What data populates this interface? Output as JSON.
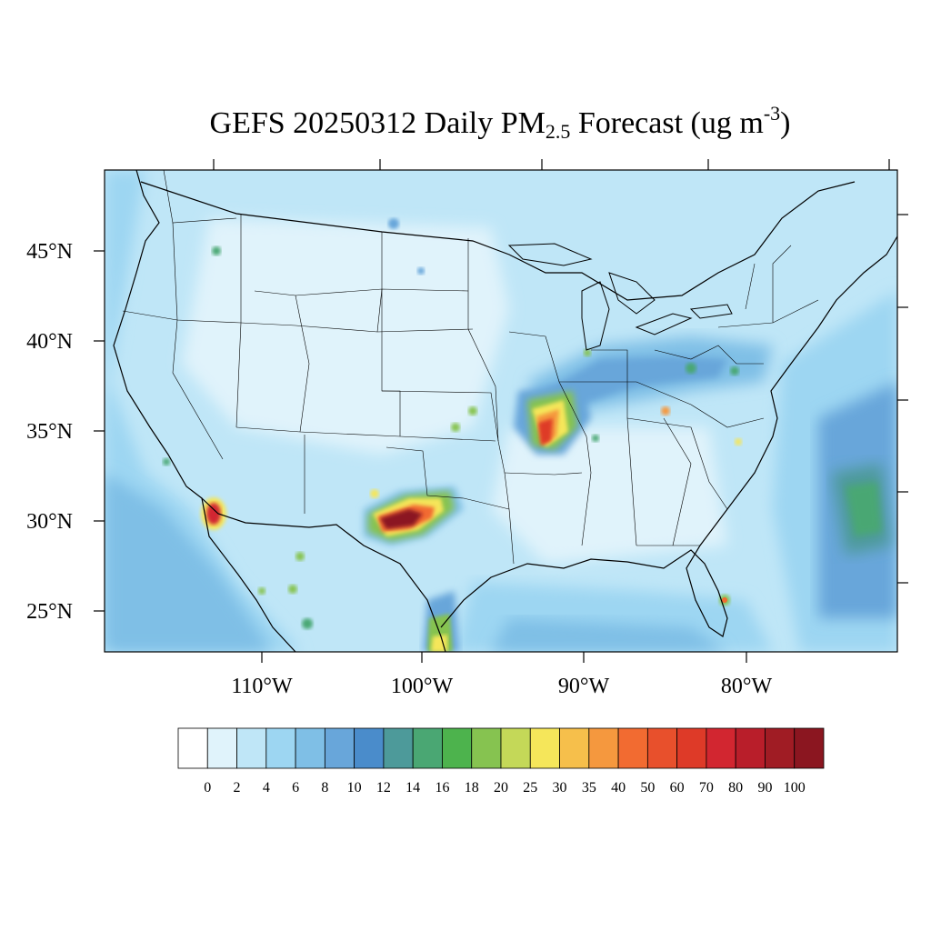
{
  "title": {
    "prefix": "GEFS 20250312 Daily PM",
    "subscript": "2.5",
    "middle": " Forecast (ug m",
    "superscript": "-3",
    "suffix": ")"
  },
  "map": {
    "lat_labels": [
      "45°N",
      "40°N",
      "35°N",
      "30°N",
      "25°N"
    ],
    "lon_labels": [
      "110°W",
      "100°W",
      "90°W",
      "80°W"
    ],
    "lat_range": [
      22.6,
      49.5
    ],
    "lon_range": [
      -119.5,
      -70.5
    ]
  },
  "colorbar": {
    "levels": [
      "0",
      "2",
      "4",
      "6",
      "8",
      "10",
      "12",
      "14",
      "16",
      "18",
      "20",
      "25",
      "30",
      "35",
      "40",
      "50",
      "60",
      "70",
      "80",
      "90",
      "100"
    ],
    "colors": [
      "#ffffff",
      "#e0f3fb",
      "#bfe6f7",
      "#9dd6f2",
      "#7fbfe6",
      "#68a6da",
      "#4a8ccb",
      "#4d9a9a",
      "#4aa773",
      "#4db34d",
      "#86c350",
      "#c4d858",
      "#f5e65a",
      "#f6bf4b",
      "#f5983e",
      "#f26b31",
      "#e8502c",
      "#de3a28",
      "#d22630",
      "#b91e2a",
      "#a01c24",
      "#8b1620"
    ]
  },
  "pm_hotspots": [
    {
      "region": "Texas",
      "lon": -100.6,
      "lat": 30.0,
      "peak": 100
    },
    {
      "region": "Missouri-Arkansas",
      "lon": -92.8,
      "lat": 35.2,
      "peak": 90
    },
    {
      "region": "Baja California",
      "lon": -113.3,
      "lat": 30.4,
      "peak": 90
    },
    {
      "region": "Florida",
      "lon": -81.0,
      "lat": 25.5,
      "peak": 40
    }
  ]
}
